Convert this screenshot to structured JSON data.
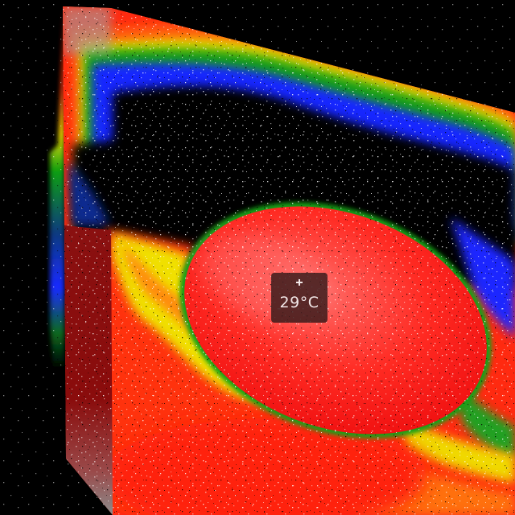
{
  "image": {
    "kind": "thermal-camera-frame",
    "palette": [
      "#000000",
      "#1428ff",
      "#00a000",
      "#c8e000",
      "#ff8800",
      "#ff1a10",
      "#ffffff"
    ]
  },
  "readout": {
    "temperature": "29°C",
    "icon": "crosshair-icon"
  }
}
